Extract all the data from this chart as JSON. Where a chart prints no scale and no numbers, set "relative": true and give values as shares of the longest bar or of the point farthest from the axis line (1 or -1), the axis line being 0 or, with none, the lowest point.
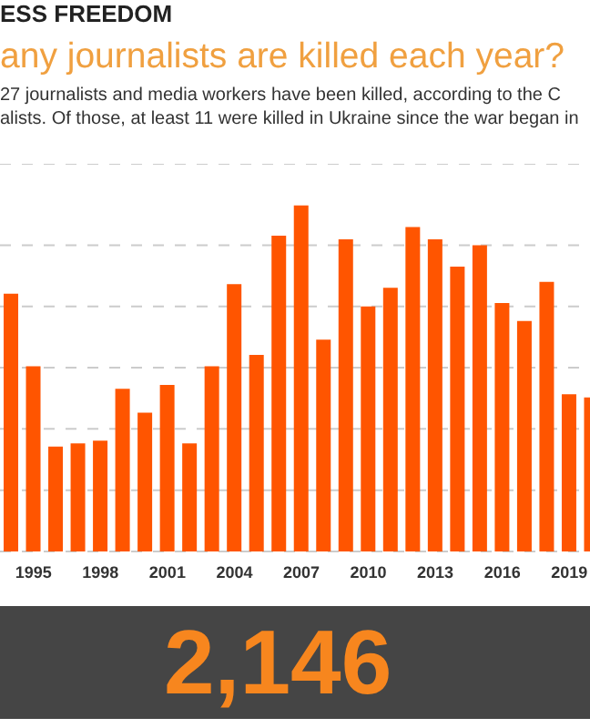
{
  "chart_data": {
    "type": "bar",
    "title": "any journalists are killed each year?",
    "subtitle": "27 journalists and media workers have been killed, according to the C\nalists. Of those, at least 11 were killed in Ukraine since the war began in",
    "annotations": [
      "ESS FREEDOM",
      "2,146"
    ],
    "categories": [
      null,
      "1995",
      null,
      null,
      "1998",
      null,
      null,
      "2001",
      null,
      null,
      "2004",
      null,
      null,
      "2007",
      null,
      null,
      "2010",
      null,
      null,
      "2013",
      null,
      null,
      "2016",
      null,
      null,
      "2019",
      null
    ],
    "values": [
      0.745,
      0.535,
      0.303,
      0.312,
      0.32,
      0.47,
      0.401,
      0.481,
      0.312,
      0.535,
      0.772,
      0.568,
      0.912,
      1,
      0.612,
      0.902,
      0.708,
      0.762,
      0.937,
      0.902,
      0.823,
      0.885,
      0.718,
      0.666,
      0.779,
      0.454,
      0.445
    ],
    "color": "#ff5500",
    "relative": true,
    "grid": "y"
  }
}
